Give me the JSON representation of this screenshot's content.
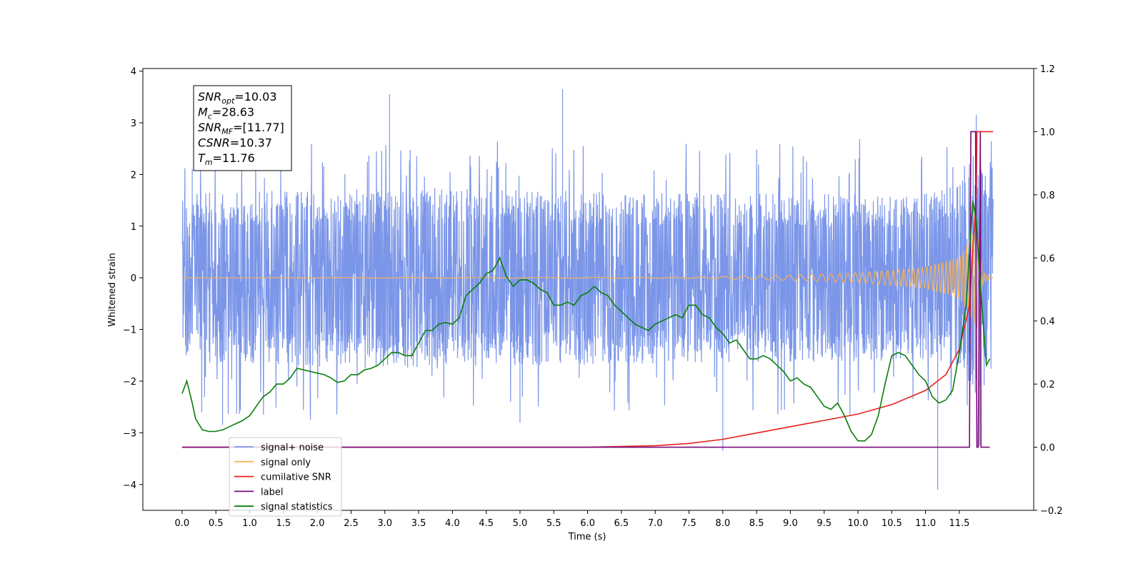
{
  "chart_data": {
    "type": "line",
    "title": "",
    "xlabel": "Time (s)",
    "ylabel_left": "Whitened strain",
    "ylabel_right": "",
    "xlim": [
      -0.58,
      12.6
    ],
    "ylim_left": [
      -4.5,
      4.05
    ],
    "ylim_right": [
      -0.2,
      1.2
    ],
    "x_ticks": [
      0.0,
      0.5,
      1.0,
      1.5,
      2.0,
      2.5,
      3.0,
      3.5,
      4.0,
      4.5,
      5.0,
      5.5,
      6.0,
      6.5,
      7.0,
      7.5,
      8.0,
      8.5,
      9.0,
      9.5,
      10.0,
      10.5,
      11.0,
      11.5
    ],
    "x_tick_labels": [
      "0.0",
      "0.5",
      "1.0",
      "1.5",
      "2.0",
      "2.5",
      "3.0",
      "3.5",
      "4.0",
      "4.5",
      "5.0",
      "5.5",
      "6.0",
      "6.5",
      "7.0",
      "7.5",
      "8.0",
      "8.5",
      "9.0",
      "9.5",
      "10.0",
      "10.5",
      "11.0",
      "11.5"
    ],
    "y_left_ticks": [
      -4,
      -3,
      -2,
      -1,
      0,
      1,
      2,
      3,
      4
    ],
    "y_left_tick_labels": [
      "−4",
      "−3",
      "−2",
      "−1",
      "0",
      "1",
      "2",
      "3",
      "4"
    ],
    "y_right_ticks": [
      -0.2,
      0.0,
      0.2,
      0.4,
      0.6,
      0.8,
      1.0,
      1.2
    ],
    "y_right_tick_labels": [
      "−0.2",
      "0.0",
      "0.2",
      "0.4",
      "0.6",
      "0.8",
      "1.0",
      "1.2"
    ],
    "grid": false,
    "legend_position": "bottom-left",
    "annotation": [
      {
        "base": "SNR",
        "sub": "opt",
        "value": "=10.03"
      },
      {
        "base": "M",
        "sub": "c",
        "value": "=28.63"
      },
      {
        "base": "SNR",
        "sub": "MF",
        "value": "=[11.77]"
      },
      {
        "base": "CSNR",
        "sub": "",
        "value": "=10.37"
      },
      {
        "base": "T",
        "sub": "m",
        "value": "=11.76"
      }
    ],
    "series": [
      {
        "name": "signal+ noise",
        "color": "#7b96e8",
        "axis": "left",
        "kind": "noise",
        "x_range": [
          0.0,
          12.0
        ],
        "envelope_upper": [
          [
            0.0,
            1.3
          ],
          [
            1.0,
            1.35
          ],
          [
            3.0,
            1.4
          ],
          [
            6.0,
            1.35
          ],
          [
            9.0,
            1.3
          ],
          [
            11.0,
            1.3
          ],
          [
            11.5,
            1.45
          ],
          [
            11.75,
            2.0
          ],
          [
            12.0,
            1.4
          ]
        ],
        "envelope_lower": [
          [
            0.0,
            -1.3
          ],
          [
            1.0,
            -1.35
          ],
          [
            3.0,
            -1.4
          ],
          [
            6.0,
            -1.35
          ],
          [
            9.0,
            -1.3
          ],
          [
            11.0,
            -1.3
          ],
          [
            11.5,
            -1.45
          ],
          [
            11.75,
            -2.0
          ],
          [
            12.0,
            -1.4
          ]
        ],
        "peaks": [
          [
            0.15,
            2.1
          ],
          [
            3.07,
            3.55
          ],
          [
            5.63,
            3.65
          ],
          [
            11.75,
            3.15
          ],
          [
            0.6,
            -2.85
          ],
          [
            1.9,
            -2.75
          ],
          [
            5.0,
            -2.8
          ],
          [
            8.0,
            -3.35
          ],
          [
            11.18,
            -4.1
          ],
          [
            11.8,
            -3.25
          ]
        ]
      },
      {
        "name": "signal only",
        "color": "#f5b25c",
        "axis": "left",
        "kind": "chirp",
        "x": [
          0.0,
          7.5,
          9.0,
          10.0,
          11.0,
          11.5,
          11.7,
          11.76,
          11.85,
          12.0
        ],
        "amplitude": [
          0.0,
          0.01,
          0.05,
          0.1,
          0.2,
          0.4,
          0.85,
          1.0,
          0.1,
          0.0
        ]
      },
      {
        "name": "cumilative SNR",
        "color": "#e8201c",
        "axis": "right",
        "kind": "line",
        "x": [
          0.0,
          6.0,
          7.0,
          7.5,
          8.0,
          8.5,
          9.0,
          9.5,
          10.0,
          10.5,
          11.0,
          11.3,
          11.5,
          11.65,
          11.75,
          11.76,
          12.0
        ],
        "y": [
          0.0,
          0.0,
          0.005,
          0.012,
          0.025,
          0.045,
          0.065,
          0.085,
          0.105,
          0.135,
          0.18,
          0.23,
          0.31,
          0.45,
          0.8,
          1.0,
          1.0
        ]
      },
      {
        "name": "label",
        "color": "#7a0a7a",
        "axis": "right",
        "kind": "line",
        "x": [
          0.0,
          11.65,
          11.67,
          11.74,
          11.76,
          11.78,
          11.81,
          11.82,
          11.95
        ],
        "y": [
          0.0,
          0.0,
          1.0,
          1.0,
          0.0,
          0.0,
          1.0,
          0.0,
          0.0
        ]
      },
      {
        "name": "signal statistics",
        "color": "#0a7d0a",
        "axis": "right",
        "kind": "line",
        "x": [
          0.0,
          0.07,
          0.15,
          0.2,
          0.3,
          0.4,
          0.5,
          0.6,
          0.7,
          0.8,
          0.9,
          1.0,
          1.1,
          1.2,
          1.3,
          1.4,
          1.5,
          1.6,
          1.7,
          1.8,
          1.9,
          2.0,
          2.1,
          2.2,
          2.3,
          2.4,
          2.5,
          2.6,
          2.7,
          2.8,
          2.9,
          3.0,
          3.1,
          3.2,
          3.3,
          3.4,
          3.5,
          3.6,
          3.7,
          3.8,
          3.9,
          4.0,
          4.1,
          4.2,
          4.3,
          4.4,
          4.5,
          4.6,
          4.7,
          4.8,
          4.9,
          5.0,
          5.1,
          5.2,
          5.3,
          5.4,
          5.5,
          5.6,
          5.7,
          5.8,
          5.9,
          6.0,
          6.1,
          6.2,
          6.3,
          6.4,
          6.5,
          6.6,
          6.7,
          6.8,
          6.9,
          7.0,
          7.1,
          7.2,
          7.3,
          7.4,
          7.5,
          7.6,
          7.7,
          7.8,
          7.9,
          8.0,
          8.1,
          8.2,
          8.3,
          8.4,
          8.5,
          8.6,
          8.7,
          8.8,
          8.9,
          9.0,
          9.1,
          9.2,
          9.3,
          9.4,
          9.5,
          9.6,
          9.7,
          9.8,
          9.9,
          10.0,
          10.1,
          10.2,
          10.3,
          10.4,
          10.5,
          10.6,
          10.7,
          10.8,
          10.9,
          11.0,
          11.1,
          11.2,
          11.3,
          11.4,
          11.5,
          11.6,
          11.7,
          11.75,
          11.8,
          11.85,
          11.9,
          11.95
        ],
        "y": [
          0.17,
          0.21,
          0.14,
          0.09,
          0.055,
          0.05,
          0.05,
          0.055,
          0.065,
          0.075,
          0.085,
          0.1,
          0.13,
          0.16,
          0.175,
          0.2,
          0.2,
          0.22,
          0.25,
          0.245,
          0.24,
          0.235,
          0.23,
          0.22,
          0.205,
          0.21,
          0.23,
          0.23,
          0.245,
          0.25,
          0.26,
          0.28,
          0.3,
          0.3,
          0.29,
          0.29,
          0.33,
          0.37,
          0.37,
          0.39,
          0.395,
          0.39,
          0.41,
          0.48,
          0.5,
          0.52,
          0.55,
          0.56,
          0.6,
          0.54,
          0.51,
          0.53,
          0.53,
          0.52,
          0.5,
          0.49,
          0.45,
          0.45,
          0.46,
          0.45,
          0.48,
          0.49,
          0.51,
          0.49,
          0.48,
          0.45,
          0.43,
          0.41,
          0.39,
          0.38,
          0.37,
          0.39,
          0.4,
          0.41,
          0.42,
          0.41,
          0.45,
          0.45,
          0.42,
          0.41,
          0.38,
          0.36,
          0.33,
          0.34,
          0.31,
          0.28,
          0.28,
          0.29,
          0.28,
          0.26,
          0.24,
          0.21,
          0.22,
          0.2,
          0.19,
          0.16,
          0.13,
          0.12,
          0.14,
          0.1,
          0.05,
          0.02,
          0.02,
          0.04,
          0.1,
          0.2,
          0.29,
          0.3,
          0.29,
          0.26,
          0.23,
          0.21,
          0.16,
          0.14,
          0.15,
          0.18,
          0.3,
          0.45,
          0.78,
          0.72,
          0.55,
          0.4,
          0.26,
          0.28
        ]
      }
    ]
  }
}
